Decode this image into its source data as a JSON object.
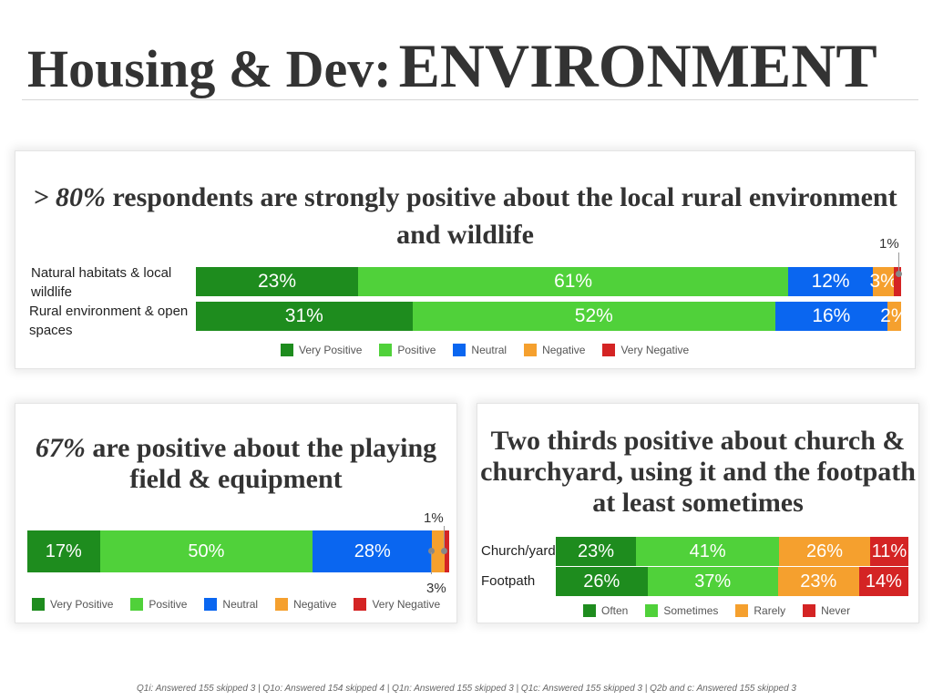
{
  "page_title": {
    "part1": "Housing & Dev:",
    "part2": "ENVIRONMENT"
  },
  "colors": {
    "very_positive": "#1e8c1e",
    "positive": "#50d13a",
    "neutral": "#0a66f0",
    "negative": "#f5a02e",
    "very_negative": "#d42424"
  },
  "chart_data": [
    {
      "type": "bar",
      "orientation": "horizontal-stacked",
      "title_emphasis": "> 80%",
      "title_rest": "respondents are strongly positive about the local rural environment and wildlife",
      "categories": [
        "Natural habitats & local wildlife",
        "Rural environment & open spaces"
      ],
      "series": [
        {
          "name": "Very Positive",
          "values": [
            23,
            31
          ],
          "labels": [
            "23%",
            "31%"
          ]
        },
        {
          "name": "Positive",
          "values": [
            61,
            52
          ],
          "labels": [
            "61%",
            "52%"
          ]
        },
        {
          "name": "Neutral",
          "values": [
            12,
            16
          ],
          "labels": [
            "12%",
            "16%"
          ]
        },
        {
          "name": "Negative",
          "values": [
            3,
            2
          ],
          "labels": [
            "3%",
            "2%"
          ]
        },
        {
          "name": "Very Negative",
          "values": [
            1,
            0
          ],
          "labels": [
            "",
            ""
          ]
        }
      ],
      "callout": "1%",
      "legend_position": "bottom"
    },
    {
      "type": "bar",
      "orientation": "horizontal-stacked",
      "title_emphasis": "67%",
      "title_rest": "are positive about the playing field & equipment",
      "categories": [
        ""
      ],
      "series": [
        {
          "name": "Very Positive",
          "values": [
            17
          ],
          "labels": [
            "17%"
          ]
        },
        {
          "name": "Positive",
          "values": [
            50
          ],
          "labels": [
            "50%"
          ]
        },
        {
          "name": "Neutral",
          "values": [
            28
          ],
          "labels": [
            "28%"
          ]
        },
        {
          "name": "Negative",
          "values": [
            3
          ],
          "labels": [
            ""
          ]
        },
        {
          "name": "Very Negative",
          "values": [
            1
          ],
          "labels": [
            ""
          ]
        }
      ],
      "callout_top": "1%",
      "callout_bottom": "3%",
      "legend_position": "bottom"
    },
    {
      "type": "bar",
      "orientation": "horizontal-stacked",
      "title": "Two thirds positive about church & churchyard, using it and the footpath at least sometimes",
      "categories": [
        "Church/yard",
        "Footpath"
      ],
      "series": [
        {
          "name": "Often",
          "values": [
            23,
            26
          ],
          "labels": [
            "23%",
            "26%"
          ]
        },
        {
          "name": "Sometimes",
          "values": [
            41,
            37
          ],
          "labels": [
            "41%",
            "37%"
          ]
        },
        {
          "name": "Rarely",
          "values": [
            26,
            23
          ],
          "labels": [
            "26%",
            "23%"
          ]
        },
        {
          "name": "Never",
          "values": [
            11,
            14
          ],
          "labels": [
            "11%",
            "14%"
          ]
        }
      ],
      "legend_position": "bottom"
    }
  ],
  "footer": "Q1i: Answered 155 skipped 3 | Q1o: Answered 154 skipped 4 | Q1n: Answered 155 skipped 3 | Q1c: Answered 155 skipped 3 | Q2b and c: Answered 155 skipped 3"
}
